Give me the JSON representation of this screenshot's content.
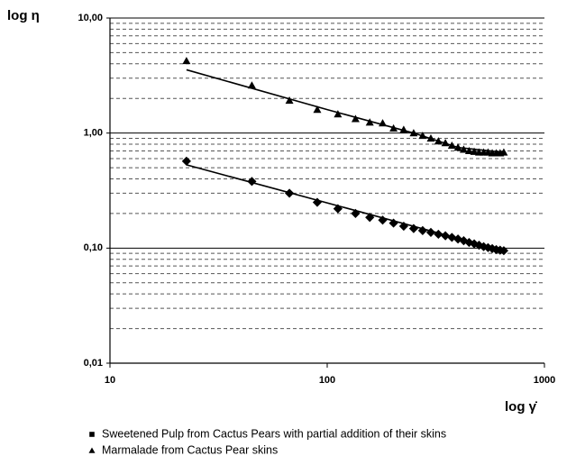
{
  "chart_data": {
    "type": "scatter",
    "log_x": true,
    "log_y": true,
    "y_label": "log η",
    "x_label": "log γ̇",
    "xlim": [
      10,
      1000
    ],
    "xticks": [
      10,
      100,
      1000
    ],
    "ylim": [
      0.01,
      10
    ],
    "yticks": [
      {
        "value": 0.01,
        "label": "0,01"
      },
      {
        "value": 0.1,
        "label": "0,10"
      },
      {
        "value": 1,
        "label": "1,00"
      },
      {
        "value": 10,
        "label": "10,00"
      }
    ],
    "y_minor_grid": [
      0.02,
      0.03,
      0.04,
      0.05,
      0.06,
      0.07,
      0.08,
      0.09,
      0.2,
      0.3,
      0.4,
      0.5,
      0.6,
      0.7,
      0.8,
      0.9,
      2,
      3,
      4,
      5,
      6,
      7,
      8,
      9
    ],
    "grid": true,
    "series": [
      {
        "name": "Sweetened Pulp from Cactus Pears with partial addition of their skins",
        "color": "#000000",
        "marker": "square",
        "x": [
          22.5,
          45,
          67,
          90,
          112,
          135,
          157,
          180,
          202,
          225,
          250,
          275,
          300,
          325,
          350,
          375,
          400,
          425,
          450,
          475,
          500,
          525,
          550,
          575,
          600,
          625,
          650
        ],
        "values": [
          0.57,
          0.38,
          0.3,
          0.25,
          0.22,
          0.2,
          0.185,
          0.175,
          0.165,
          0.155,
          0.148,
          0.142,
          0.137,
          0.132,
          0.128,
          0.124,
          0.12,
          0.116,
          0.112,
          0.109,
          0.106,
          0.103,
          0.101,
          0.099,
          0.097,
          0.096,
          0.095
        ],
        "fit": {
          "x": [
            22.5,
            650
          ],
          "values": [
            0.53,
            0.095
          ]
        }
      },
      {
        "name": "Marmalade from Cactus Pear skins",
        "color": "#000000",
        "marker": "triangle",
        "x": [
          22.5,
          45,
          67,
          90,
          112,
          135,
          157,
          180,
          202,
          225,
          250,
          275,
          300,
          325,
          350,
          375,
          400,
          425,
          450,
          475,
          500,
          525,
          550,
          575,
          600,
          625,
          650
        ],
        "values": [
          4.24,
          2.6,
          1.92,
          1.6,
          1.46,
          1.33,
          1.24,
          1.22,
          1.1,
          1.07,
          1.0,
          0.95,
          0.9,
          0.85,
          0.82,
          0.78,
          0.75,
          0.72,
          0.7,
          0.69,
          0.68,
          0.68,
          0.68,
          0.67,
          0.67,
          0.67,
          0.68
        ],
        "fit": {
          "x": [
            22.5,
            100,
            250,
            400,
            650
          ],
          "values": [
            3.55,
            1.6,
            1.0,
            0.75,
            0.68
          ]
        }
      }
    ]
  }
}
